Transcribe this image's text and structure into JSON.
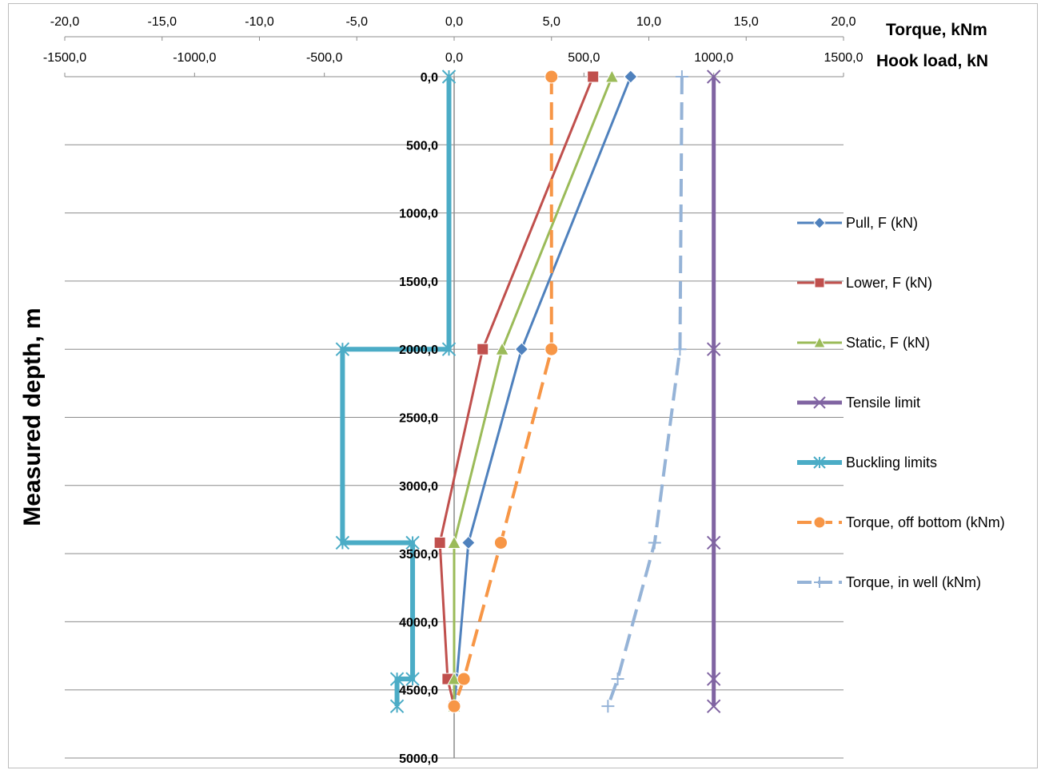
{
  "chart_data": {
    "type": "line",
    "ylabel": "Measured depth, m",
    "y_inverted": true,
    "ylim": [
      0,
      5000
    ],
    "y_ticks": [
      "0,0",
      "500,0",
      "1000,0",
      "1500,0",
      "2000,0",
      "2500,0",
      "3000,0",
      "3500,0",
      "4000,0",
      "4500,0",
      "5000,0"
    ],
    "axis_torque": {
      "label": "Torque, kNm",
      "range": [
        -20,
        20
      ],
      "ticks": [
        "-20,0",
        "-15,0",
        "-10,0",
        "-5,0",
        "0,0",
        "5,0",
        "10,0",
        "15,0",
        "20,0"
      ]
    },
    "axis_hookload": {
      "label": "Hook load, kN",
      "range": [
        -1500,
        1500
      ],
      "ticks": [
        "-1500,0",
        "-1000,0",
        "-500,0",
        "0,0",
        "500,0",
        "1000,0",
        "1500,0"
      ]
    },
    "grid": true,
    "legend_position": "right",
    "series": [
      {
        "name": "Pull, F (kN)",
        "axis": "hookload",
        "color": "#4f81bd",
        "marker": "diamond",
        "dash": false,
        "width": 3,
        "points": [
          [
            680,
            0
          ],
          [
            260,
            2000
          ],
          [
            55,
            3420
          ],
          [
            10,
            4420
          ],
          [
            0,
            4620
          ]
        ]
      },
      {
        "name": "Lower, F (kN)",
        "axis": "hookload",
        "color": "#c0504d",
        "marker": "square",
        "dash": false,
        "width": 3,
        "points": [
          [
            535,
            0
          ],
          [
            110,
            2000
          ],
          [
            -55,
            3420
          ],
          [
            -25,
            4420
          ],
          [
            0,
            4620
          ]
        ]
      },
      {
        "name": "Static, F (kN)",
        "axis": "hookload",
        "color": "#9bbb59",
        "marker": "triangle",
        "dash": false,
        "width": 3,
        "points": [
          [
            608,
            0
          ],
          [
            185,
            2000
          ],
          [
            0,
            3420
          ],
          [
            0,
            4420
          ],
          [
            0,
            4620
          ]
        ]
      },
      {
        "name": "Tensile limit",
        "axis": "hookload",
        "color": "#8064a2",
        "marker": "x",
        "dash": false,
        "width": 5,
        "points": [
          [
            1000,
            0
          ],
          [
            1000,
            2000
          ],
          [
            1000,
            3420
          ],
          [
            1000,
            4420
          ],
          [
            1000,
            4620
          ]
        ]
      },
      {
        "name": "Buckling limits",
        "axis": "hookload",
        "color": "#4bacc6",
        "marker": "star",
        "dash": false,
        "width": 6,
        "points": [
          [
            -20,
            0
          ],
          [
            -20,
            2000
          ],
          [
            -430,
            2000
          ],
          [
            -430,
            3420
          ],
          [
            -160,
            3420
          ],
          [
            -160,
            4420
          ],
          [
            -220,
            4420
          ],
          [
            -220,
            4620
          ]
        ]
      },
      {
        "name": "Torque, off bottom (kNm)",
        "axis": "torque",
        "color": "#f79646",
        "marker": "circle",
        "dash": true,
        "width": 4,
        "points": [
          [
            5.0,
            0
          ],
          [
            5.0,
            2000
          ],
          [
            2.4,
            3420
          ],
          [
            0.5,
            4420
          ],
          [
            0.0,
            4620
          ]
        ]
      },
      {
        "name": "Torque, in well (kNm)",
        "axis": "torque",
        "color": "#95b3d7",
        "marker": "plus",
        "dash": true,
        "width": 4,
        "points": [
          [
            11.7,
            0
          ],
          [
            11.6,
            2000
          ],
          [
            10.3,
            3420
          ],
          [
            8.4,
            4420
          ],
          [
            7.9,
            4620
          ]
        ]
      }
    ]
  }
}
